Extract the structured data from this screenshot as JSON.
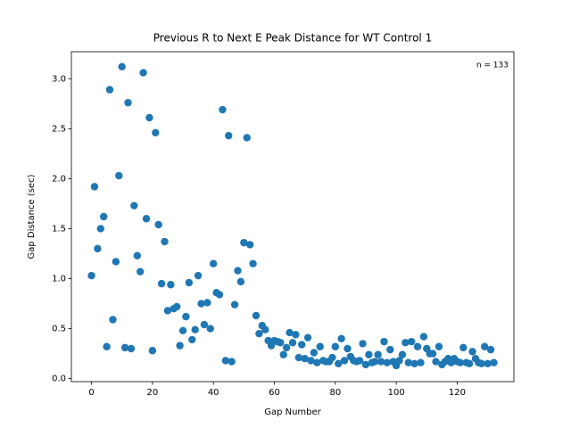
{
  "chart_data": {
    "type": "scatter",
    "title": "Previous R to Next E Peak Distance for WT Control 1",
    "xlabel": "Gap Number",
    "ylabel": "Gap Distance (sec)",
    "annotation": "n = 133",
    "color": "#1f77b4",
    "x": [
      0,
      1,
      2,
      3,
      4,
      5,
      6,
      7,
      8,
      9,
      10,
      11,
      12,
      13,
      14,
      15,
      16,
      17,
      18,
      19,
      20,
      21,
      22,
      23,
      24,
      25,
      26,
      27,
      28,
      29,
      30,
      31,
      32,
      33,
      34,
      35,
      36,
      37,
      38,
      39,
      40,
      41,
      42,
      43,
      44,
      45,
      46,
      47,
      48,
      49,
      50,
      51,
      52,
      53,
      54,
      55,
      56,
      57,
      58,
      59,
      60,
      61,
      62,
      63,
      64,
      65,
      66,
      67,
      68,
      69,
      70,
      71,
      72,
      73,
      74,
      75,
      76,
      77,
      78,
      79,
      80,
      81,
      82,
      83,
      84,
      85,
      86,
      87,
      88,
      89,
      90,
      91,
      92,
      93,
      94,
      95,
      96,
      97,
      98,
      99,
      100,
      101,
      102,
      103,
      104,
      105,
      106,
      107,
      108,
      109,
      110,
      111,
      112,
      113,
      114,
      115,
      116,
      117,
      118,
      119,
      120,
      121,
      122,
      123,
      124,
      125,
      126,
      127,
      128,
      129,
      130,
      131,
      132
    ],
    "values": [
      1.03,
      1.92,
      1.3,
      1.5,
      1.62,
      0.32,
      2.89,
      0.59,
      1.17,
      2.03,
      3.12,
      0.31,
      2.76,
      0.3,
      1.73,
      1.23,
      1.07,
      3.06,
      1.6,
      2.61,
      0.28,
      2.46,
      1.54,
      0.95,
      1.37,
      0.68,
      0.94,
      0.7,
      0.72,
      0.33,
      0.48,
      0.62,
      0.96,
      0.39,
      0.49,
      1.03,
      0.75,
      0.54,
      0.76,
      0.5,
      1.15,
      0.86,
      0.84,
      2.69,
      0.18,
      2.43,
      0.17,
      0.74,
      1.08,
      0.97,
      1.36,
      2.41,
      1.34,
      1.15,
      0.63,
      0.45,
      0.53,
      0.49,
      0.38,
      0.33,
      0.38,
      0.37,
      0.36,
      0.24,
      0.31,
      0.46,
      0.36,
      0.44,
      0.21,
      0.34,
      0.2,
      0.41,
      0.18,
      0.26,
      0.16,
      0.32,
      0.18,
      0.17,
      0.17,
      0.21,
      0.32,
      0.15,
      0.4,
      0.18,
      0.3,
      0.22,
      0.18,
      0.17,
      0.18,
      0.35,
      0.14,
      0.24,
      0.16,
      0.17,
      0.24,
      0.17,
      0.37,
      0.16,
      0.29,
      0.17,
      0.13,
      0.18,
      0.24,
      0.36,
      0.16,
      0.37,
      0.15,
      0.32,
      0.16,
      0.42,
      0.3,
      0.25,
      0.25,
      0.17,
      0.32,
      0.14,
      0.17,
      0.2,
      0.16,
      0.2,
      0.17,
      0.16,
      0.31,
      0.16,
      0.15,
      0.27,
      0.2,
      0.16,
      0.15,
      0.32,
      0.15,
      0.29,
      0.16
    ],
    "xlim": [
      -6.6,
      138.6
    ],
    "xticks": [
      0,
      20,
      40,
      60,
      80,
      100,
      120
    ],
    "ylim": [
      -0.03,
      3.27
    ],
    "yticks": [
      {
        "value": 0,
        "label": "0.0"
      },
      0.5,
      {
        "value": 1,
        "label": "1.0"
      },
      1.5,
      {
        "value": 2,
        "label": "2.0"
      },
      2.5,
      {
        "value": 3,
        "label": "3.0"
      }
    ]
  }
}
